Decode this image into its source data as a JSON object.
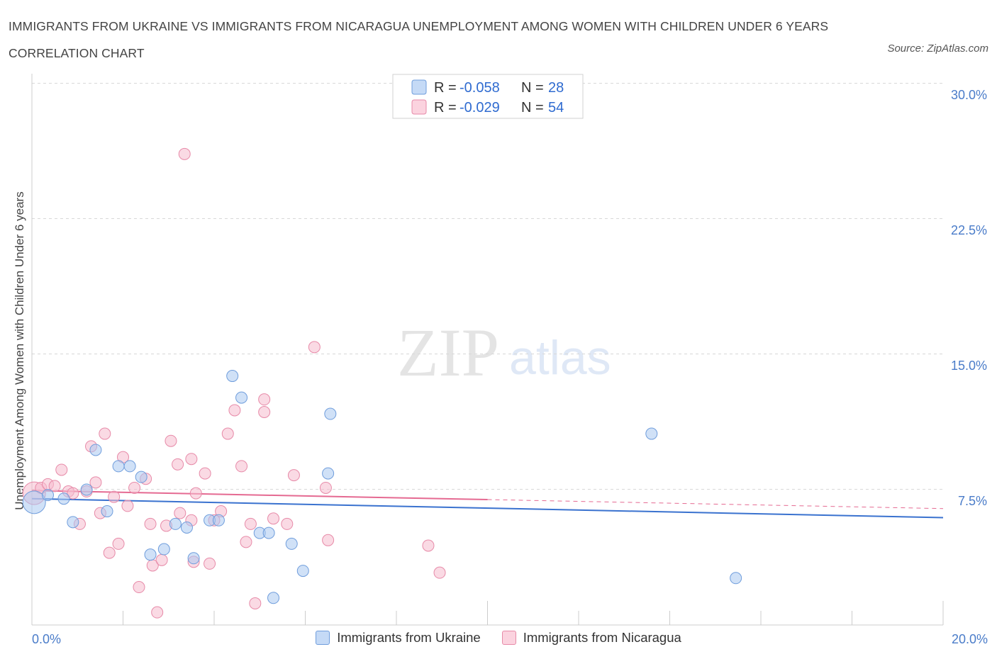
{
  "title": "IMMIGRANTS FROM UKRAINE VS IMMIGRANTS FROM NICARAGUA UNEMPLOYMENT AMONG WOMEN WITH CHILDREN UNDER 6 YEARS CORRELATION CHART",
  "source": "Source: ZipAtlas.com",
  "watermark": {
    "zip": "ZIP",
    "atlas": "atlas"
  },
  "colors": {
    "ukraine_fill": "#aac8f0",
    "ukraine_stroke": "#6f9ddc",
    "ukraine_line": "#3a72cf",
    "nicaragua_fill": "#f6bccd",
    "nicaragua_stroke": "#e78aa8",
    "nicaragua_line": "#e56a92",
    "tick_text": "#4a7cc9",
    "grid": "#d8d8d8"
  },
  "legend": {
    "r_label": "R =",
    "n_label": "N =",
    "rows": [
      {
        "r": "-0.058",
        "n": "28",
        "series": "ukraine"
      },
      {
        "r": "-0.029",
        "n": "54",
        "series": "nicaragua"
      }
    ]
  },
  "chart_data": {
    "type": "scatter",
    "title": "IMMIGRANTS FROM UKRAINE VS IMMIGRANTS FROM NICARAGUA UNEMPLOYMENT AMONG WOMEN WITH CHILDREN UNDER 6 YEARS CORRELATION CHART",
    "xlabel": "",
    "ylabel": "Unemployment Among Women with Children Under 6 years",
    "xlim": [
      0,
      20
    ],
    "ylim": [
      0,
      30
    ],
    "x_tick_labels": [
      {
        "value": 0,
        "label": "0.0%"
      },
      {
        "value": 20,
        "label": "20.0%"
      }
    ],
    "y_tick_labels": [
      {
        "value": 7.5,
        "label": "7.5%"
      },
      {
        "value": 15,
        "label": "15.0%"
      },
      {
        "value": 22.5,
        "label": "22.5%"
      },
      {
        "value": 30,
        "label": "30.0%"
      }
    ],
    "grid": true,
    "legend_position": "top-center",
    "series": [
      {
        "name": "Immigrants from Ukraine",
        "color": "#aac8f0",
        "points": [
          {
            "x": 0.05,
            "y": 6.8,
            "big": true
          },
          {
            "x": 0.35,
            "y": 7.2
          },
          {
            "x": 0.7,
            "y": 7.0
          },
          {
            "x": 0.9,
            "y": 5.7
          },
          {
            "x": 1.2,
            "y": 7.5
          },
          {
            "x": 1.4,
            "y": 9.7
          },
          {
            "x": 1.65,
            "y": 6.3
          },
          {
            "x": 1.9,
            "y": 8.8
          },
          {
            "x": 2.15,
            "y": 8.8
          },
          {
            "x": 2.4,
            "y": 8.2
          },
          {
            "x": 2.6,
            "y": 3.9
          },
          {
            "x": 2.9,
            "y": 4.2
          },
          {
            "x": 3.15,
            "y": 5.6
          },
          {
            "x": 3.4,
            "y": 5.4
          },
          {
            "x": 3.55,
            "y": 3.7
          },
          {
            "x": 3.9,
            "y": 5.8
          },
          {
            "x": 4.1,
            "y": 5.8
          },
          {
            "x": 4.4,
            "y": 13.8
          },
          {
            "x": 4.6,
            "y": 12.6
          },
          {
            "x": 5.0,
            "y": 5.1
          },
          {
            "x": 5.2,
            "y": 5.1
          },
          {
            "x": 5.3,
            "y": 1.5
          },
          {
            "x": 5.7,
            "y": 4.5
          },
          {
            "x": 5.95,
            "y": 3.0
          },
          {
            "x": 6.5,
            "y": 8.4
          },
          {
            "x": 6.55,
            "y": 11.7
          },
          {
            "x": 13.6,
            "y": 10.6
          },
          {
            "x": 15.45,
            "y": 2.6
          }
        ]
      },
      {
        "name": "Immigrants from Nicaragua",
        "color": "#f6bccd",
        "points": [
          {
            "x": 0.05,
            "y": 7.3,
            "big": true
          },
          {
            "x": 0.2,
            "y": 7.6
          },
          {
            "x": 0.35,
            "y": 7.8
          },
          {
            "x": 0.5,
            "y": 7.7
          },
          {
            "x": 0.65,
            "y": 8.6
          },
          {
            "x": 0.8,
            "y": 7.4
          },
          {
            "x": 0.9,
            "y": 7.3
          },
          {
            "x": 1.05,
            "y": 5.6
          },
          {
            "x": 1.2,
            "y": 7.4
          },
          {
            "x": 1.3,
            "y": 9.9
          },
          {
            "x": 1.4,
            "y": 7.9
          },
          {
            "x": 1.5,
            "y": 6.2
          },
          {
            "x": 1.6,
            "y": 10.6
          },
          {
            "x": 1.7,
            "y": 4.0
          },
          {
            "x": 1.8,
            "y": 7.1
          },
          {
            "x": 1.9,
            "y": 4.5
          },
          {
            "x": 2.0,
            "y": 9.3
          },
          {
            "x": 2.1,
            "y": 6.6
          },
          {
            "x": 2.25,
            "y": 7.6
          },
          {
            "x": 2.35,
            "y": 2.1
          },
          {
            "x": 2.5,
            "y": 8.1
          },
          {
            "x": 2.6,
            "y": 5.6
          },
          {
            "x": 2.65,
            "y": 3.3
          },
          {
            "x": 2.75,
            "y": 0.7
          },
          {
            "x": 2.85,
            "y": 3.6
          },
          {
            "x": 2.95,
            "y": 5.5
          },
          {
            "x": 3.05,
            "y": 10.2
          },
          {
            "x": 3.2,
            "y": 8.9
          },
          {
            "x": 3.25,
            "y": 6.2
          },
          {
            "x": 3.35,
            "y": 26.1
          },
          {
            "x": 3.5,
            "y": 9.2
          },
          {
            "x": 3.55,
            "y": 3.5
          },
          {
            "x": 3.6,
            "y": 7.3
          },
          {
            "x": 3.8,
            "y": 8.4
          },
          {
            "x": 3.9,
            "y": 3.4
          },
          {
            "x": 4.0,
            "y": 5.8
          },
          {
            "x": 4.15,
            "y": 6.3
          },
          {
            "x": 4.3,
            "y": 10.6
          },
          {
            "x": 4.45,
            "y": 11.9
          },
          {
            "x": 4.6,
            "y": 8.8
          },
          {
            "x": 4.7,
            "y": 4.6
          },
          {
            "x": 4.8,
            "y": 5.6
          },
          {
            "x": 4.9,
            "y": 1.2
          },
          {
            "x": 5.1,
            "y": 12.5
          },
          {
            "x": 5.1,
            "y": 11.8
          },
          {
            "x": 5.3,
            "y": 5.9
          },
          {
            "x": 5.6,
            "y": 5.6
          },
          {
            "x": 5.75,
            "y": 8.3
          },
          {
            "x": 6.2,
            "y": 15.4
          },
          {
            "x": 6.45,
            "y": 7.6
          },
          {
            "x": 6.5,
            "y": 4.7
          },
          {
            "x": 8.7,
            "y": 4.4
          },
          {
            "x": 8.95,
            "y": 2.9
          },
          {
            "x": 3.5,
            "y": 5.8
          }
        ]
      }
    ],
    "trend_lines": [
      {
        "series": "Immigrants from Ukraine",
        "x": [
          0,
          20
        ],
        "y": [
          7.0,
          5.95
        ]
      },
      {
        "series": "Immigrants from Nicaragua",
        "x": [
          0,
          10
        ],
        "y": [
          7.45,
          6.95
        ],
        "dashed_x": [
          10,
          20
        ],
        "dashed_y": [
          6.95,
          6.45
        ]
      }
    ]
  },
  "bottom_legend": [
    {
      "label": "Immigrants from Ukraine",
      "series": "ukraine"
    },
    {
      "label": "Immigrants from Nicaragua",
      "series": "nicaragua"
    }
  ]
}
